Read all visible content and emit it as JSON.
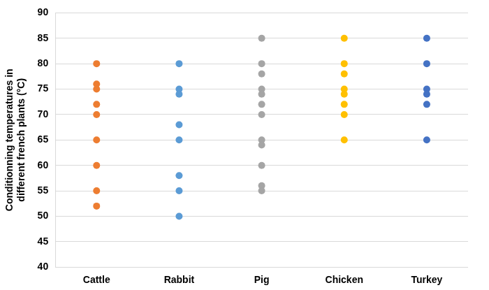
{
  "chart_data": {
    "type": "scatter",
    "y_label": [
      "Conditionning temperatures in",
      "different french plants (°C)"
    ],
    "categories": [
      "Cattle",
      "Rabbit",
      "Pig",
      "Chicken",
      "Turkey"
    ],
    "values": [
      [
        80,
        76,
        75,
        72,
        70,
        65,
        60,
        55,
        52
      ],
      [
        80,
        75,
        74,
        68,
        65,
        58,
        55,
        50
      ],
      [
        85,
        80,
        78,
        75,
        74,
        72,
        70,
        65,
        64,
        60,
        56,
        55
      ],
      [
        85,
        80,
        78,
        75,
        74,
        72,
        70,
        65
      ],
      [
        85,
        80,
        75,
        74,
        72,
        65
      ]
    ],
    "colors": [
      "#ED7D31",
      "#5B9BD5",
      "#A5A5A5",
      "#FFC000",
      "#4472C4"
    ],
    "ylim": [
      40,
      90
    ],
    "yticks": [
      40,
      45,
      50,
      55,
      60,
      65,
      70,
      75,
      80,
      85,
      90
    ],
    "grid": true
  }
}
